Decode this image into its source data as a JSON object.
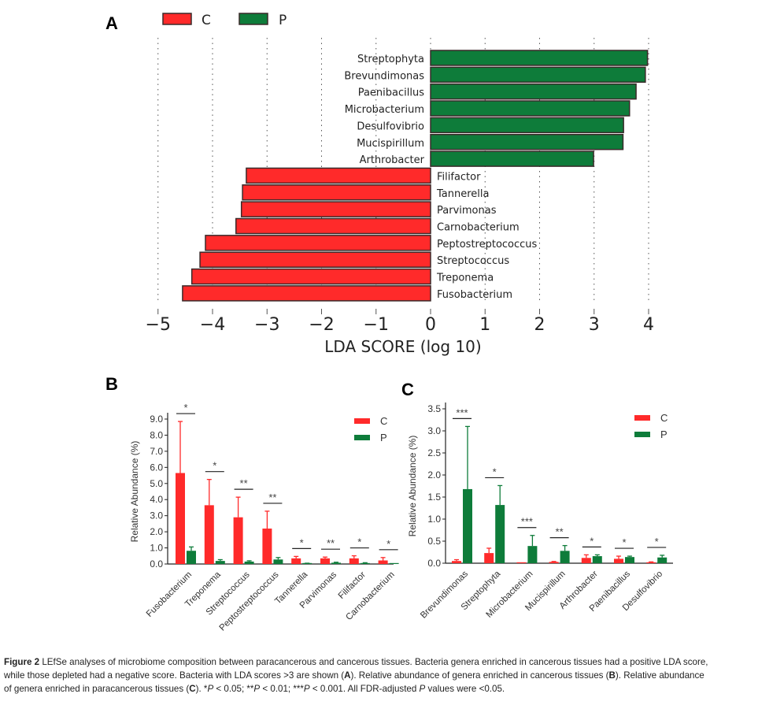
{
  "colors": {
    "C": "#ff2a2a",
    "P": "#0e7c3a",
    "bar_edge": "#3a2a2a"
  },
  "chart_data": [
    {
      "panel": "A",
      "type": "bar",
      "orientation": "horizontal",
      "title": "",
      "xlabel": "LDA SCORE (log 10)",
      "ylabel": "",
      "xlim": [
        -5,
        4
      ],
      "xticks": [
        "−5",
        "−4",
        "−3",
        "−2",
        "−1",
        "0",
        "1",
        "2",
        "3",
        "4"
      ],
      "grid": "vertical dotted",
      "legend": {
        "placement": "top-left",
        "entries": [
          "C",
          "P"
        ]
      },
      "categories": [
        "Streptophyta",
        "Brevundimonas",
        "Paenibacillus",
        "Microbacterium",
        "Desulfovibrio",
        "Mucispirillum",
        "Arthrobacter",
        "Filifactor",
        "Tannerella",
        "Parvimonas",
        "Carnobacterium",
        "Peptostreptococcus",
        "Streptococcus",
        "Treponema",
        "Fusobacterium"
      ],
      "groups": [
        "P",
        "P",
        "P",
        "P",
        "P",
        "P",
        "P",
        "C",
        "C",
        "C",
        "C",
        "C",
        "C",
        "C",
        "C"
      ],
      "values": [
        3.98,
        3.94,
        3.77,
        3.65,
        3.54,
        3.53,
        2.99,
        -3.38,
        -3.45,
        -3.47,
        -3.57,
        -4.13,
        -4.23,
        -4.38,
        -4.55
      ]
    },
    {
      "panel": "B",
      "type": "bar",
      "title": "",
      "xlabel": "",
      "ylabel": "Relative Abundance (%)",
      "ylim": [
        0,
        9.0
      ],
      "yticks": [
        "0.0",
        "1.0",
        "2.0",
        "3.0",
        "4.0",
        "5.0",
        "6.0",
        "7.0",
        "8.0",
        "9.0"
      ],
      "legend": {
        "placement": "top-right",
        "entries": [
          "C",
          "P"
        ]
      },
      "categories": [
        "Fusobacterium",
        "Treponema",
        "Streptococcus",
        "Peptostreptococcus",
        "Tannerella",
        "Parvimonas",
        "Filifactor",
        "Carnobacterium"
      ],
      "series": [
        {
          "name": "C",
          "values": [
            5.65,
            3.65,
            2.9,
            2.2,
            0.35,
            0.35,
            0.35,
            0.22
          ],
          "error": [
            3.2,
            1.6,
            1.25,
            1.08,
            0.12,
            0.08,
            0.16,
            0.18
          ]
        },
        {
          "name": "P",
          "values": [
            0.82,
            0.19,
            0.15,
            0.28,
            0.03,
            0.08,
            0.05,
            0.0
          ],
          "error": [
            0.24,
            0.08,
            0.05,
            0.12,
            0.02,
            0.03,
            0.03,
            0.0
          ]
        }
      ],
      "significance": [
        "*",
        "*",
        "**",
        "**",
        "*",
        "**",
        "*",
        "*"
      ]
    },
    {
      "panel": "C",
      "type": "bar",
      "title": "",
      "xlabel": "",
      "ylabel": "Relative Abundance (%)",
      "ylim": [
        0,
        3.5
      ],
      "yticks": [
        "0.0",
        "0.5",
        "1.0",
        "1.5",
        "2.0",
        "2.5",
        "3.0",
        "3.5"
      ],
      "legend": {
        "placement": "top-right",
        "entries": [
          "C",
          "P"
        ]
      },
      "categories": [
        "Brevundimonas",
        "Streptophyta",
        "Microbacterium",
        "Mucispirillum",
        "Arthrobacter",
        "Paenibacillus",
        "Desulfovibrio"
      ],
      "series": [
        {
          "name": "C",
          "values": [
            0.05,
            0.23,
            0.01,
            0.03,
            0.12,
            0.1,
            0.02
          ],
          "error": [
            0.03,
            0.11,
            0.0,
            0.01,
            0.07,
            0.06,
            0.01
          ]
        },
        {
          "name": "P",
          "values": [
            1.68,
            1.32,
            0.39,
            0.28,
            0.16,
            0.14,
            0.13
          ],
          "error": [
            1.42,
            0.44,
            0.24,
            0.12,
            0.03,
            0.02,
            0.05
          ]
        }
      ],
      "significance": [
        "***",
        "*",
        "***",
        "**",
        "*",
        "*",
        "*"
      ]
    }
  ],
  "panel_labels": {
    "A": "A",
    "B": "B",
    "C": "C"
  },
  "caption": {
    "figure_label": "Figure 2",
    "line1": " LEfSe analyses of microbiome composition between paracancerous and cancerous tissues. Bacteria genera enriched in cancerous tissues had a positive LDA score,",
    "line2_a": "while those depleted had a negative score. Bacteria with LDA scores >3 are shown (",
    "line2_b": "A",
    "line2_c": "). Relative abundance of genera enriched in cancerous tissues (",
    "line2_d": "B",
    "line2_e": "). Relative abundance",
    "line3_a": "of genera enriched in paracancerous tissues (",
    "line3_b": "C",
    "line3_c": "). *",
    "line3_p1": "P",
    "line3_d": " < 0.05; **",
    "line3_p2": "P",
    "line3_e": " < 0.01; ***",
    "line3_p3": "P",
    "line3_f": " < 0.001. All FDR-adjusted ",
    "line3_p4": "P",
    "line3_g": " values were <0.05."
  }
}
